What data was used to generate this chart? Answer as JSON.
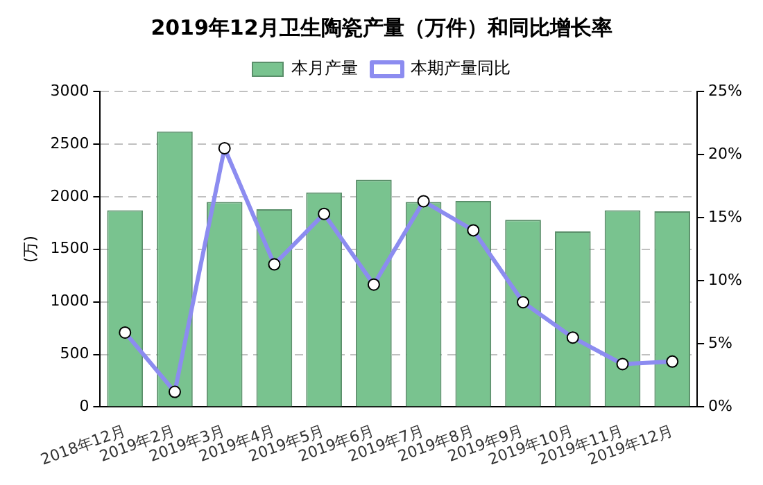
{
  "chart_data": {
    "type": "bar",
    "title": "2019年12月卫生陶瓷产量（万件）和同比增长率",
    "ylabel": "(万)",
    "categories": [
      "2018年12月",
      "2019年2月",
      "2019年3月",
      "2019年4月",
      "2019年5月",
      "2019年6月",
      "2019年7月",
      "2019年8月",
      "2019年9月",
      "2019年10月",
      "2019年11月",
      "2019年12月"
    ],
    "series": [
      {
        "name": "本月产量",
        "color": "#79c38f",
        "values": [
          1870,
          2620,
          1950,
          1880,
          2040,
          2160,
          1950,
          1960,
          1780,
          1670,
          1870,
          1860
        ]
      },
      {
        "name": "本期产量同比",
        "type": "line",
        "axis": "y2",
        "color": "#8c8cf0",
        "values": [
          5.9,
          1.2,
          20.5,
          11.3,
          15.3,
          9.7,
          16.3,
          14.0,
          8.3,
          5.5,
          3.4,
          3.6
        ]
      }
    ],
    "ylim": [
      0,
      3000
    ],
    "yticks": [
      0,
      500,
      1000,
      1500,
      2000,
      2500,
      3000
    ],
    "y2lim": [
      0,
      25
    ],
    "y2ticks": [
      {
        "value": 0,
        "label": "0%"
      },
      {
        "value": 5,
        "label": "5%"
      },
      {
        "value": 10,
        "label": "10%"
      },
      {
        "value": 15,
        "label": "15%"
      },
      {
        "value": 20,
        "label": "20%"
      },
      {
        "value": 25,
        "label": "25%"
      }
    ],
    "grid": "y",
    "legend": "top",
    "marker": "circle",
    "line_style": "solid"
  }
}
